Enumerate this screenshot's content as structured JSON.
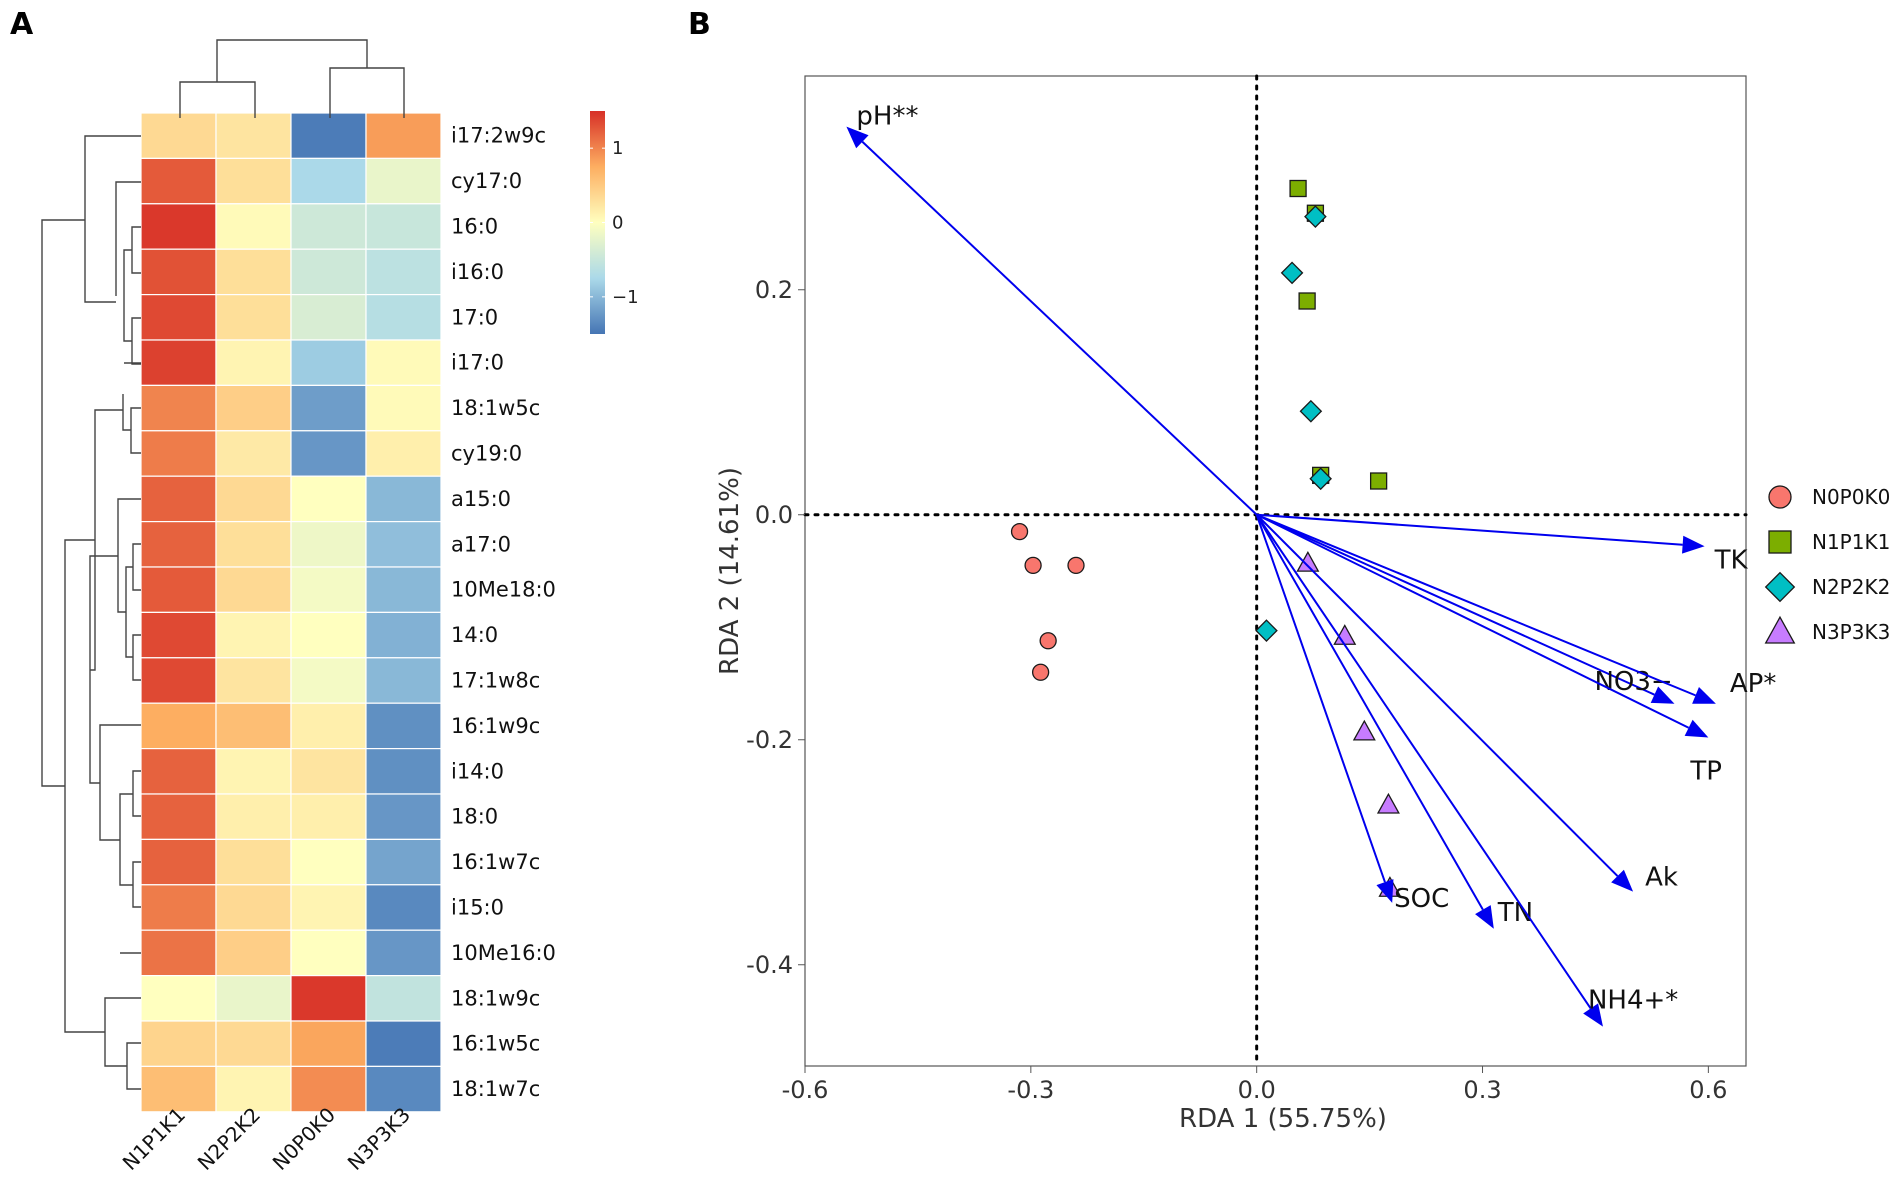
{
  "panels": {
    "a": "A",
    "b": "B"
  },
  "chart_data": [
    {
      "type": "heatmap",
      "panel": "A",
      "columns": [
        "N1P1K1",
        "N2P2K2",
        "N0P0K0",
        "N3P3K3"
      ],
      "rows": [
        "i17:2w9c",
        "cy17:0",
        "16:0",
        "i16:0",
        "17:0",
        "i17:0",
        "18:1w5c",
        "cy19:0",
        "a15:0",
        "a17:0",
        "10Me18:0",
        "14:0",
        "17:1w8c",
        "16:1w9c",
        "i14:0",
        "18:0",
        "16:1w7c",
        "i15:0",
        "10Me16:0",
        "18:1w9c",
        "16:1w5c",
        "18:1w7c"
      ],
      "values": [
        [
          0.35,
          0.25,
          -1.45,
          0.85
        ],
        [
          1.25,
          0.3,
          -0.75,
          -0.2
        ],
        [
          1.45,
          0.05,
          -0.45,
          -0.5
        ],
        [
          1.3,
          0.3,
          -0.45,
          -0.6
        ],
        [
          1.35,
          0.3,
          -0.35,
          -0.65
        ],
        [
          1.4,
          0.1,
          -0.85,
          0.05
        ],
        [
          1.0,
          0.45,
          -1.2,
          0.05
        ],
        [
          1.05,
          0.2,
          -1.25,
          0.15
        ],
        [
          1.2,
          0.35,
          0.0,
          -1.0
        ],
        [
          1.2,
          0.3,
          -0.15,
          -0.95
        ],
        [
          1.25,
          0.35,
          -0.1,
          -1.0
        ],
        [
          1.35,
          0.1,
          0.0,
          -1.05
        ],
        [
          1.35,
          0.25,
          -0.1,
          -1.0
        ],
        [
          0.75,
          0.6,
          0.15,
          -1.3
        ],
        [
          1.2,
          0.1,
          0.25,
          -1.3
        ],
        [
          1.2,
          0.15,
          0.15,
          -1.25
        ],
        [
          1.2,
          0.3,
          0.0,
          -1.15
        ],
        [
          1.05,
          0.35,
          0.1,
          -1.35
        ],
        [
          1.1,
          0.45,
          0.0,
          -1.25
        ],
        [
          0.0,
          -0.2,
          1.45,
          -0.55
        ],
        [
          0.4,
          0.35,
          0.8,
          -1.45
        ],
        [
          0.6,
          0.1,
          0.95,
          -1.35
        ]
      ],
      "color_scale": {
        "min": -1.5,
        "max": 1.5,
        "ticks": [
          1,
          0,
          -1
        ],
        "low": "#4575b4",
        "mid": "#ffffbf",
        "high": "#d73027"
      }
    },
    {
      "type": "scatter",
      "panel": "B",
      "xlabel": "RDA 1 (55.75%)",
      "ylabel": "RDA 2 (14.61%)",
      "xlim": [
        -0.6,
        0.65
      ],
      "ylim": [
        -0.49,
        0.39
      ],
      "xticks": [
        -0.6,
        -0.3,
        0.0,
        0.3,
        0.6
      ],
      "xtick_labels": [
        "-0.6",
        "-0.3",
        "0.0",
        "0.3",
        "0.6"
      ],
      "yticks": [
        0.2,
        0.0,
        -0.2,
        -0.4
      ],
      "ytick_labels": [
        "0.2",
        "0.0",
        "-0.2",
        "-0.4"
      ],
      "series": [
        {
          "name": "N0P0K0",
          "marker": "circle",
          "color": "#f8766d",
          "points": [
            [
              -0.315,
              -0.015
            ],
            [
              -0.297,
              -0.045
            ],
            [
              -0.24,
              -0.045
            ],
            [
              -0.277,
              -0.112
            ],
            [
              -0.287,
              -0.14
            ]
          ]
        },
        {
          "name": "N1P1K1",
          "marker": "square",
          "color": "#7cae00",
          "points": [
            [
              0.055,
              0.29
            ],
            [
              0.078,
              0.268
            ],
            [
              0.067,
              0.19
            ],
            [
              0.085,
              0.035
            ],
            [
              0.162,
              0.03
            ]
          ]
        },
        {
          "name": "N2P2K2",
          "marker": "diamond",
          "color": "#00bfc4",
          "points": [
            [
              0.078,
              0.265
            ],
            [
              0.047,
              0.215
            ],
            [
              0.072,
              0.092
            ],
            [
              0.085,
              0.032
            ],
            [
              0.013,
              -0.103
            ]
          ]
        },
        {
          "name": "N3P3K3",
          "marker": "triangle",
          "color": "#c77cff",
          "points": [
            [
              0.068,
              -0.043
            ],
            [
              0.117,
              -0.108
            ],
            [
              0.143,
              -0.193
            ],
            [
              0.175,
              -0.258
            ],
            [
              0.177,
              -0.332
            ]
          ]
        }
      ],
      "vectors": [
        {
          "label": "pH**",
          "x": -0.545,
          "y": 0.345
        },
        {
          "label": "TK",
          "x": 0.595,
          "y": -0.028
        },
        {
          "label": "NO3−",
          "x": 0.555,
          "y": -0.168
        },
        {
          "label": "AP*",
          "x": 0.61,
          "y": -0.168
        },
        {
          "label": "TP",
          "x": 0.6,
          "y": -0.198
        },
        {
          "label": "Ak",
          "x": 0.5,
          "y": -0.335
        },
        {
          "label": "SOC",
          "x": 0.18,
          "y": -0.345
        },
        {
          "label": "TN",
          "x": 0.315,
          "y": -0.368
        },
        {
          "label": "NH4+*",
          "x": 0.46,
          "y": -0.455
        }
      ],
      "vector_color": "#0000ee",
      "legend_position": "right"
    }
  ]
}
